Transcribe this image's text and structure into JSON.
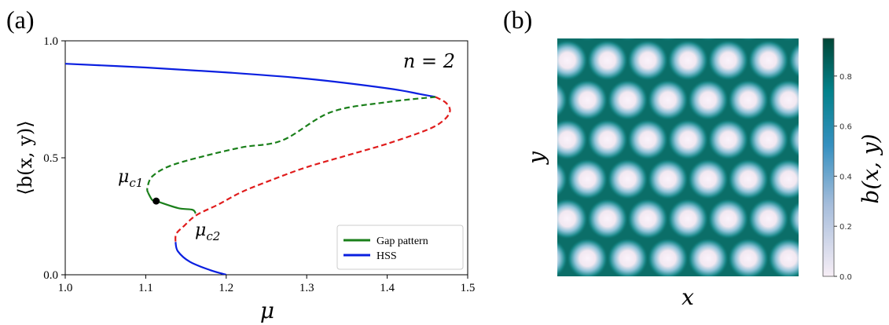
{
  "panel_a_label": "(a)",
  "panel_b_label": "(b)",
  "chart_data": [
    {
      "type": "line",
      "xlabel": "μ",
      "ylabel": "⟨b(x, y)⟩",
      "xlim": [
        1.0,
        1.5
      ],
      "ylim": [
        0.0,
        1.0
      ],
      "xticks": [
        "1.0",
        "1.1",
        "1.2",
        "1.3",
        "1.4",
        "1.5"
      ],
      "yticks": [
        "0.0",
        "0.5",
        "1.0"
      ],
      "annotation_n": "n = 2",
      "annotation_mu_c1": "μc1",
      "annotation_mu_c2": "μc2",
      "legend_position": "lower right",
      "legend": [
        "Gap pattern",
        "HSS"
      ],
      "colors": {
        "gap": "#1a7f1a",
        "hss": "#0a1fe0",
        "unstable_hss": "#e01c1c",
        "point": "#000000"
      },
      "series": [
        {
          "name": "HSS",
          "style": "solid",
          "color": "#0a1fe0",
          "points": [
            [
              1.0,
              0.902
            ],
            [
              1.1,
              0.886
            ],
            [
              1.2,
              0.865
            ],
            [
              1.3,
              0.838
            ],
            [
              1.4,
              0.797
            ],
            [
              1.44,
              0.773
            ],
            [
              1.46,
              0.76
            ]
          ]
        },
        {
          "name": "HSS",
          "style": "solid",
          "color": "#0a1fe0",
          "points": [
            [
              1.2,
              0.0
            ],
            [
              1.18,
              0.02
            ],
            [
              1.155,
              0.055
            ],
            [
              1.14,
              0.1
            ],
            [
              1.137,
              0.14
            ]
          ]
        },
        {
          "style": "dashed",
          "color": "#e01c1c",
          "points": [
            [
              1.46,
              0.76
            ],
            [
              1.473,
              0.735
            ],
            [
              1.478,
              0.7
            ],
            [
              1.47,
              0.66
            ],
            [
              1.45,
              0.62
            ],
            [
              1.4,
              0.56
            ],
            [
              1.35,
              0.51
            ],
            [
              1.3,
              0.46
            ],
            [
              1.26,
              0.41
            ],
            [
              1.22,
              0.355
            ],
            [
              1.19,
              0.3
            ],
            [
              1.163,
              0.255
            ],
            [
              1.148,
              0.21
            ],
            [
              1.138,
              0.175
            ],
            [
              1.137,
              0.14
            ]
          ]
        },
        {
          "name": "Gap pattern",
          "style": "dashed",
          "color": "#1a7f1a",
          "points": [
            [
              1.46,
              0.76
            ],
            [
              1.4,
              0.738
            ],
            [
              1.33,
              0.695
            ],
            [
              1.27,
              0.575
            ],
            [
              1.22,
              0.545
            ],
            [
              1.17,
              0.505
            ],
            [
              1.13,
              0.465
            ],
            [
              1.108,
              0.42
            ],
            [
              1.102,
              0.37
            ],
            [
              1.103,
              0.35
            ]
          ]
        },
        {
          "name": "Gap pattern",
          "style": "solid",
          "color": "#1a7f1a",
          "points": [
            [
              1.103,
              0.35
            ],
            [
              1.108,
              0.32
            ],
            [
              1.113,
              0.315
            ],
            [
              1.14,
              0.285
            ],
            [
              1.158,
              0.278
            ],
            [
              1.162,
              0.262
            ]
          ]
        }
      ],
      "marked_points": [
        [
          1.113,
          0.315
        ]
      ]
    },
    {
      "type": "heatmap",
      "xlabel": "x",
      "ylabel": "y",
      "colorbar_label": "b(x, y)",
      "colorbar_ticks": [
        "0.0",
        "0.2",
        "0.4",
        "0.6",
        "0.8"
      ],
      "colorbar_range": [
        0.0,
        0.95
      ],
      "colormap": [
        "#f7eef6",
        "#67a9cf",
        "#02818a",
        "#014636"
      ],
      "pattern": "hexagonal array of low-b (white) spots",
      "rows": 6,
      "spots_per_row": 6
    }
  ]
}
